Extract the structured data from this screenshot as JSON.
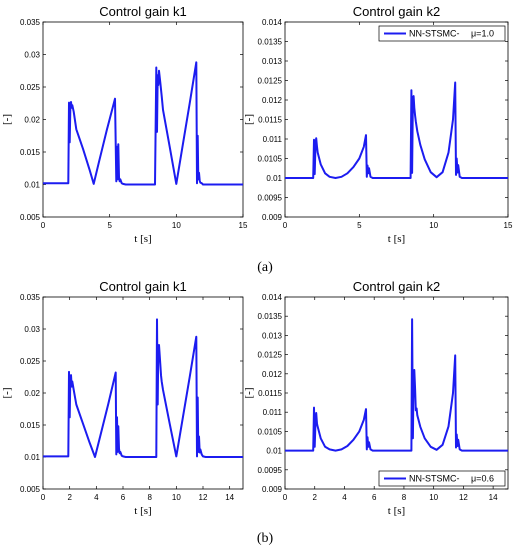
{
  "panel_labels": [
    "(a)",
    "(b)"
  ],
  "chart_data": [
    {
      "type": "line",
      "title": "Control gain k1",
      "xlabel": "t [s]",
      "ylabel": "[-]",
      "xlim": [
        0,
        15
      ],
      "ylim": [
        0.005,
        0.035
      ],
      "xticks": [
        0,
        5,
        10,
        15
      ],
      "yticks": [
        0.005,
        0.01,
        0.015,
        0.02,
        0.025,
        0.03,
        0.035
      ],
      "ytick_labels": [
        "0.005",
        "0.01",
        "0.015",
        "0.02",
        "0.025",
        "0.03",
        "0.035"
      ],
      "line_color": "#1c1cf0",
      "series": [
        {
          "x": [
            0,
            1.9,
            1.95,
            2.0,
            2.05,
            2.1,
            2.15,
            2.2,
            2.3,
            2.5,
            3.0,
            3.5,
            3.8,
            4.2,
            4.8,
            5.4,
            5.5,
            5.55,
            5.6,
            5.65,
            5.7,
            5.75,
            5.8,
            5.9,
            6.0,
            6.2,
            8.4,
            8.5,
            8.55,
            8.6,
            8.65,
            8.7,
            8.8,
            8.9,
            9.0,
            9.5,
            10.0,
            10.5,
            11.0,
            11.5,
            11.55,
            11.6,
            11.65,
            11.7,
            11.75,
            11.8,
            11.9,
            12.0,
            12.2,
            15
          ],
          "y": [
            0.0102,
            0.0102,
            0.0226,
            0.0165,
            0.0215,
            0.0227,
            0.0218,
            0.0222,
            0.0212,
            0.0185,
            0.0155,
            0.0122,
            0.0101,
            0.0135,
            0.0185,
            0.0232,
            0.0105,
            0.0158,
            0.0108,
            0.0162,
            0.0111,
            0.0105,
            0.0108,
            0.0102,
            0.0101,
            0.01,
            0.01,
            0.028,
            0.0181,
            0.0268,
            0.0253,
            0.0275,
            0.0257,
            0.0236,
            0.0215,
            0.0158,
            0.0101,
            0.0163,
            0.0225,
            0.0288,
            0.0102,
            0.0175,
            0.0108,
            0.0118,
            0.0106,
            0.0103,
            0.0102,
            0.01,
            0.01,
            0.01
          ]
        }
      ]
    },
    {
      "type": "line",
      "title": "Control gain k2",
      "xlabel": "t [s]",
      "ylabel": "[-]",
      "xlim": [
        0,
        15
      ],
      "ylim": [
        0.009,
        0.014
      ],
      "xticks": [
        0,
        5,
        10,
        15
      ],
      "yticks": [
        0.009,
        0.0095,
        0.01,
        0.0105,
        0.011,
        0.0115,
        0.012,
        0.0125,
        0.013,
        0.0135,
        0.014
      ],
      "ytick_labels": [
        "0.009",
        "0.0095",
        "0.01",
        "0.0105",
        "0.011",
        "0.0115",
        "0.012",
        "0.0125",
        "0.013",
        "0.0135",
        "0.014"
      ],
      "legend": {
        "label": "NN-STSMC-",
        "mu": "μ=1.0",
        "loc": "top-right"
      },
      "line_color": "#1c1cf0",
      "series": [
        {
          "name": "NN-STSMC-",
          "x": [
            0,
            1.9,
            1.95,
            2.0,
            2.05,
            2.1,
            2.15,
            2.2,
            2.4,
            2.7,
            3.0,
            3.4,
            3.8,
            4.2,
            4.6,
            5.0,
            5.3,
            5.45,
            5.5,
            5.55,
            5.6,
            5.65,
            5.75,
            5.9,
            8.45,
            8.5,
            8.55,
            8.6,
            8.65,
            8.7,
            8.75,
            8.8,
            8.9,
            9.1,
            9.4,
            9.8,
            10.2,
            10.6,
            11.0,
            11.3,
            11.45,
            11.5,
            11.55,
            11.6,
            11.65,
            11.75,
            11.9,
            15
          ],
          "y": [
            0.01,
            0.01,
            0.01098,
            0.0101,
            0.01085,
            0.01102,
            0.0108,
            0.01065,
            0.01035,
            0.01012,
            0.01003,
            0.01,
            0.01003,
            0.01012,
            0.01028,
            0.0105,
            0.0108,
            0.0111,
            0.01003,
            0.01032,
            0.01012,
            0.01025,
            0.01003,
            0.01,
            0.01,
            0.01225,
            0.01013,
            0.01205,
            0.0121,
            0.0118,
            0.0116,
            0.01145,
            0.0112,
            0.01085,
            0.01048,
            0.01015,
            0.01002,
            0.01015,
            0.01065,
            0.0115,
            0.01245,
            0.01008,
            0.0105,
            0.01014,
            0.01033,
            0.01003,
            0.01,
            0.01
          ]
        }
      ]
    },
    {
      "type": "line",
      "title": "Control gain k1",
      "xlabel": "t [s]",
      "ylabel": "[-]",
      "xlim": [
        0,
        15
      ],
      "ylim": [
        0.005,
        0.035
      ],
      "xticks": [
        0,
        2,
        4,
        6,
        8,
        10,
        12,
        14
      ],
      "yticks": [
        0.005,
        0.01,
        0.015,
        0.02,
        0.025,
        0.03,
        0.035
      ],
      "ytick_labels": [
        "0.005",
        "0.01",
        "0.015",
        "0.02",
        "0.025",
        "0.03",
        "0.035"
      ],
      "line_color": "#1c1cf0",
      "series": [
        {
          "x": [
            0,
            1.9,
            1.95,
            2.0,
            2.05,
            2.1,
            2.15,
            2.2,
            2.3,
            2.5,
            3.0,
            3.5,
            3.9,
            4.3,
            4.9,
            5.45,
            5.5,
            5.55,
            5.6,
            5.65,
            5.7,
            5.75,
            5.8,
            5.9,
            6.0,
            6.2,
            8.5,
            8.55,
            8.6,
            8.65,
            8.7,
            8.8,
            8.85,
            8.9,
            9.0,
            9.5,
            10.0,
            10.5,
            11.0,
            11.5,
            11.55,
            11.6,
            11.65,
            11.7,
            11.75,
            11.8,
            11.9,
            12.0,
            12.2,
            15
          ],
          "y": [
            0.0101,
            0.0101,
            0.0233,
            0.0162,
            0.0221,
            0.0228,
            0.021,
            0.0218,
            0.0205,
            0.0182,
            0.0152,
            0.0122,
            0.01,
            0.0133,
            0.0183,
            0.0232,
            0.0104,
            0.0162,
            0.0108,
            0.0148,
            0.0113,
            0.0106,
            0.0108,
            0.0102,
            0.0101,
            0.01,
            0.01,
            0.0315,
            0.0182,
            0.0273,
            0.0275,
            0.0245,
            0.0228,
            0.0218,
            0.0205,
            0.0152,
            0.0101,
            0.0163,
            0.0225,
            0.0288,
            0.0101,
            0.0193,
            0.0108,
            0.0132,
            0.0107,
            0.0112,
            0.0104,
            0.0101,
            0.01,
            0.01
          ]
        }
      ]
    },
    {
      "type": "line",
      "title": "Control gain k2",
      "xlabel": "t [s]",
      "ylabel": "[-]",
      "xlim": [
        0,
        15
      ],
      "ylim": [
        0.009,
        0.014
      ],
      "xticks": [
        0,
        2,
        4,
        6,
        8,
        10,
        12,
        14
      ],
      "yticks": [
        0.009,
        0.0095,
        0.01,
        0.0105,
        0.011,
        0.0115,
        0.012,
        0.0125,
        0.013,
        0.0135,
        0.014
      ],
      "ytick_labels": [
        "0.009",
        "0.0095",
        "0.01",
        "0.0105",
        "0.011",
        "0.0115",
        "0.012",
        "0.0125",
        "0.013",
        "0.0135",
        "0.014"
      ],
      "legend": {
        "label": "NN-STSMC-",
        "mu": "μ=0.6",
        "loc": "bottom-right"
      },
      "line_color": "#1c1cf0",
      "series": [
        {
          "name": "NN-STSMC-",
          "x": [
            0,
            1.9,
            1.95,
            2.0,
            2.05,
            2.1,
            2.15,
            2.2,
            2.4,
            2.7,
            3.0,
            3.4,
            3.8,
            4.2,
            4.6,
            5.0,
            5.3,
            5.45,
            5.5,
            5.55,
            5.6,
            5.65,
            5.75,
            5.9,
            8.5,
            8.55,
            8.6,
            8.65,
            8.7,
            8.75,
            8.8,
            8.85,
            8.9,
            9.1,
            9.4,
            9.8,
            10.2,
            10.6,
            11.0,
            11.3,
            11.45,
            11.5,
            11.55,
            11.6,
            11.65,
            11.75,
            11.9,
            15
          ],
          "y": [
            0.01,
            0.01,
            0.01112,
            0.0101,
            0.01075,
            0.01098,
            0.0107,
            0.01062,
            0.01032,
            0.0101,
            0.01003,
            0.01,
            0.01003,
            0.01012,
            0.01028,
            0.0105,
            0.0108,
            0.01108,
            0.01003,
            0.01035,
            0.0101,
            0.01022,
            0.01003,
            0.01,
            0.01,
            0.01342,
            0.01032,
            0.01205,
            0.0121,
            0.0116,
            0.01105,
            0.0111,
            0.01092,
            0.01062,
            0.01032,
            0.0101,
            0.01002,
            0.01015,
            0.01063,
            0.0115,
            0.01248,
            0.01008,
            0.01042,
            0.01012,
            0.01028,
            0.01003,
            0.01,
            0.01
          ]
        }
      ]
    }
  ]
}
